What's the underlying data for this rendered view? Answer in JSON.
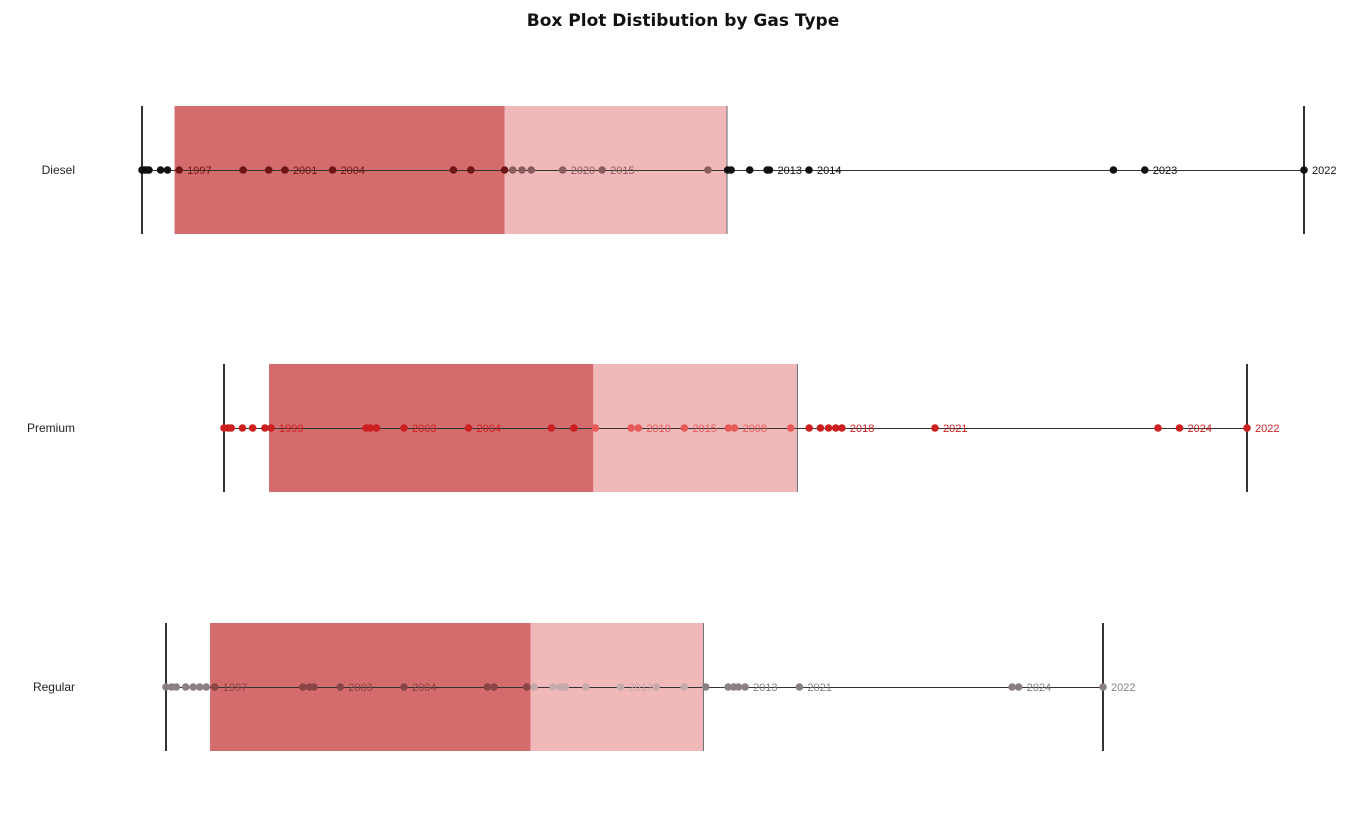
{
  "chart_data": {
    "type": "box",
    "title": "Box Plot Distibution by Gas Type",
    "xlabel": "",
    "ylabel": "",
    "xlim": [
      0,
      100
    ],
    "colors": {
      "box_lower": "#d46b6c",
      "box_upper": "#f0b8b9",
      "whisker": "#333333"
    },
    "series": [
      {
        "name": "Diesel",
        "min": 0.0,
        "q1": 2.8,
        "median": 31.2,
        "q3": 50.3,
        "max": 100.0,
        "dot_colors": {
          "low": "#111111",
          "box_lower": "#6e1515",
          "box_upper": "#8a5e5e",
          "high": "#111111"
        },
        "points": [
          {
            "v": 0.0
          },
          {
            "v": 0.2
          },
          {
            "v": 0.4
          },
          {
            "v": 0.6
          },
          {
            "v": 1.6
          },
          {
            "v": 2.2
          },
          {
            "v": 3.2,
            "label": "1997"
          },
          {
            "v": 8.7
          },
          {
            "v": 10.9
          },
          {
            "v": 12.3,
            "label": "2001"
          },
          {
            "v": 16.4,
            "label": "2004"
          },
          {
            "v": 26.8
          },
          {
            "v": 28.3
          },
          {
            "v": 31.2
          },
          {
            "v": 31.9
          },
          {
            "v": 32.7
          },
          {
            "v": 33.5
          },
          {
            "v": 36.2,
            "label": "2020"
          },
          {
            "v": 39.6,
            "label": "2015"
          },
          {
            "v": 48.7
          },
          {
            "v": 50.4
          },
          {
            "v": 50.7
          },
          {
            "v": 52.3
          },
          {
            "v": 53.8
          },
          {
            "v": 54.0,
            "label": "2013"
          },
          {
            "v": 57.4,
            "label": "2014"
          },
          {
            "v": 83.6
          },
          {
            "v": 86.3,
            "label": "2023"
          },
          {
            "v": 100.0,
            "label": "2022"
          }
        ]
      },
      {
        "name": "Premium",
        "min": 0.0,
        "q1": 4.4,
        "median": 36.1,
        "q3": 56.0,
        "max": 100.0,
        "dot_colors": {
          "low": "#cc1f1f",
          "box_lower": "#cc1f1f",
          "box_upper": "#e85a5a",
          "high": "#cc1f1f"
        },
        "points": [
          {
            "v": 0.0
          },
          {
            "v": 0.4
          },
          {
            "v": 0.7
          },
          {
            "v": 1.8
          },
          {
            "v": 2.8
          },
          {
            "v": 4.0
          },
          {
            "v": 4.6,
            "label": "1999"
          },
          {
            "v": 13.9
          },
          {
            "v": 14.3
          },
          {
            "v": 14.9
          },
          {
            "v": 17.6,
            "label": "2003"
          },
          {
            "v": 23.9,
            "label": "2004"
          },
          {
            "v": 32.0
          },
          {
            "v": 34.2
          },
          {
            "v": 36.3
          },
          {
            "v": 39.8
          },
          {
            "v": 40.5,
            "label": "2010"
          },
          {
            "v": 45.0,
            "label": "2015"
          },
          {
            "v": 49.3
          },
          {
            "v": 49.9,
            "label": "2008"
          },
          {
            "v": 55.4
          },
          {
            "v": 57.2
          },
          {
            "v": 58.3
          },
          {
            "v": 59.1
          },
          {
            "v": 59.8
          },
          {
            "v": 60.4,
            "label": "2018"
          },
          {
            "v": 69.5,
            "label": "2021"
          },
          {
            "v": 91.3
          },
          {
            "v": 93.4,
            "label": "2024"
          },
          {
            "v": 100.0,
            "label": "2022"
          }
        ]
      },
      {
        "name": "Regular",
        "min": 0.0,
        "q1": 4.7,
        "median": 38.9,
        "q3": 57.3,
        "max": 100.0,
        "dot_colors": {
          "low": "#8a8080",
          "box_lower": "#8a4545",
          "box_upper": "#c4aaaa",
          "high": "#8a8080"
        },
        "points": [
          {
            "v": 0.0
          },
          {
            "v": 0.6
          },
          {
            "v": 1.1
          },
          {
            "v": 2.1
          },
          {
            "v": 2.9
          },
          {
            "v": 3.6
          },
          {
            "v": 4.3
          },
          {
            "v": 5.2,
            "label": "1997"
          },
          {
            "v": 14.6
          },
          {
            "v": 15.3
          },
          {
            "v": 15.8
          },
          {
            "v": 18.6,
            "label": "2003"
          },
          {
            "v": 25.4,
            "label": "2004"
          },
          {
            "v": 34.3
          },
          {
            "v": 35.0
          },
          {
            "v": 38.5
          },
          {
            "v": 39.3
          },
          {
            "v": 41.3
          },
          {
            "v": 42.1
          },
          {
            "v": 42.6
          },
          {
            "v": 44.8
          },
          {
            "v": 48.5,
            "label": "2017"
          },
          {
            "v": 52.3
          },
          {
            "v": 55.3
          },
          {
            "v": 57.6
          },
          {
            "v": 60.0
          },
          {
            "v": 60.6
          },
          {
            "v": 61.1
          },
          {
            "v": 61.8,
            "label": "2013"
          },
          {
            "v": 67.6,
            "label": "2021"
          },
          {
            "v": 90.3
          },
          {
            "v": 91.0,
            "label": "2024"
          },
          {
            "v": 100.0,
            "label": "2022"
          }
        ]
      }
    ]
  }
}
